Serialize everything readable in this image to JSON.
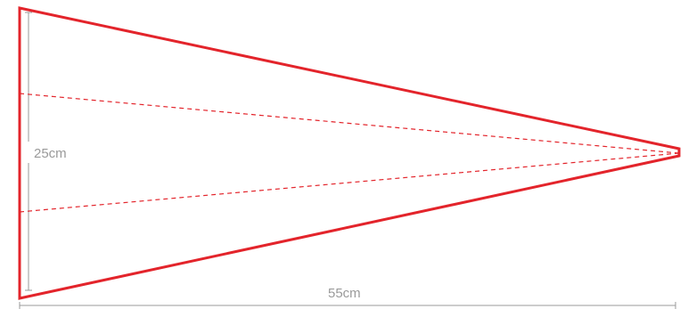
{
  "diagram": {
    "height_label": "25cm",
    "width_label": "55cm",
    "outline_color": "#e3242b",
    "dimension_color": "#9a9a9a"
  }
}
